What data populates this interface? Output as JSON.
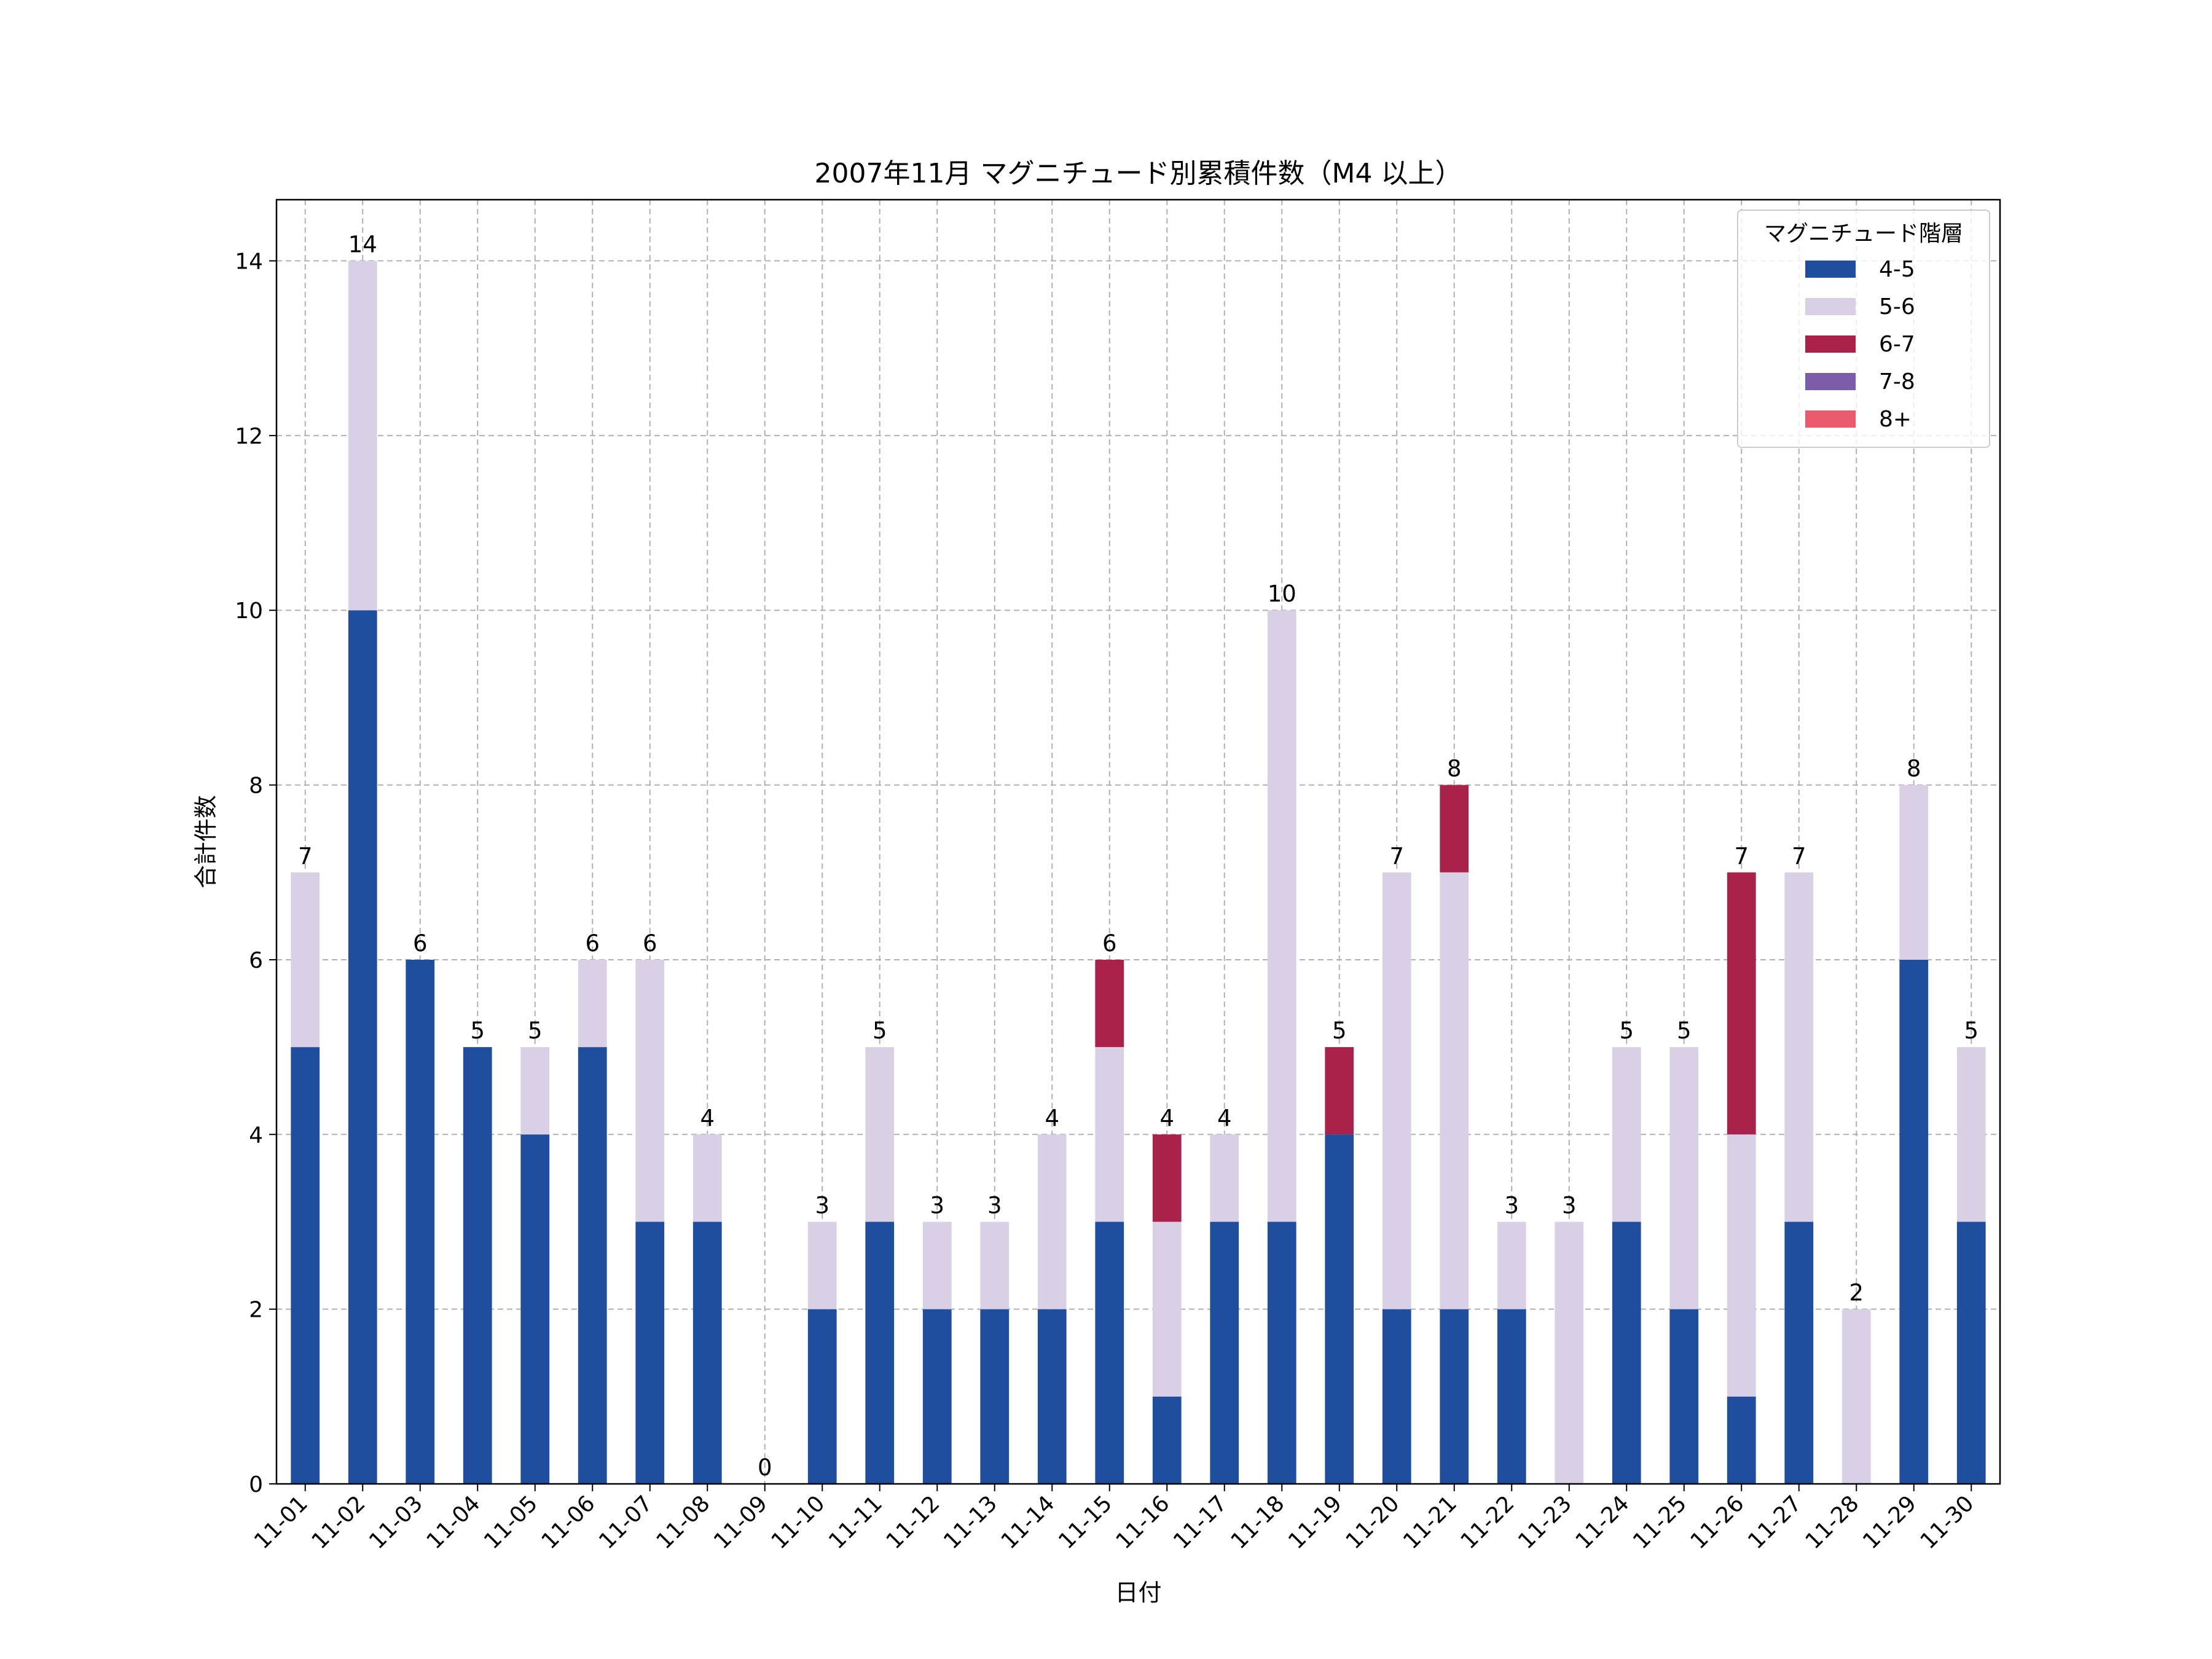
{
  "chart_data": {
    "type": "bar",
    "stacked": true,
    "title": "2007年11月 マグニチュード別累積件数（M4 以上）",
    "xlabel": "日付",
    "ylabel": "合計件数",
    "ylim": [
      0,
      14.7
    ],
    "yticks": [
      0,
      2,
      4,
      6,
      8,
      10,
      12,
      14
    ],
    "grid": true,
    "legend": {
      "title": "マグニチュード階層",
      "placement": "top-right"
    },
    "categories": [
      "11-01",
      "11-02",
      "11-03",
      "11-04",
      "11-05",
      "11-06",
      "11-07",
      "11-08",
      "11-09",
      "11-10",
      "11-11",
      "11-12",
      "11-13",
      "11-14",
      "11-15",
      "11-16",
      "11-17",
      "11-18",
      "11-19",
      "11-20",
      "11-21",
      "11-22",
      "11-23",
      "11-24",
      "11-25",
      "11-26",
      "11-27",
      "11-28",
      "11-29",
      "11-30"
    ],
    "series": [
      {
        "name": "4-5",
        "color": "#1f4e9e",
        "values": [
          5,
          10,
          6,
          5,
          4,
          5,
          3,
          3,
          0,
          2,
          3,
          2,
          2,
          2,
          3,
          1,
          3,
          3,
          4,
          2,
          2,
          2,
          0,
          3,
          2,
          1,
          3,
          0,
          6,
          3
        ]
      },
      {
        "name": "5-6",
        "color": "#dad0e6",
        "values": [
          2,
          4,
          0,
          0,
          1,
          1,
          3,
          1,
          0,
          1,
          2,
          1,
          1,
          2,
          2,
          2,
          1,
          7,
          0,
          5,
          5,
          1,
          3,
          2,
          3,
          3,
          4,
          2,
          2,
          2
        ]
      },
      {
        "name": "6-7",
        "color": "#a8224a",
        "values": [
          0,
          0,
          0,
          0,
          0,
          0,
          0,
          0,
          0,
          0,
          0,
          0,
          0,
          0,
          1,
          1,
          0,
          0,
          1,
          0,
          1,
          0,
          0,
          0,
          0,
          3,
          0,
          0,
          0,
          0
        ]
      },
      {
        "name": "7-8",
        "color": "#7a5ca8",
        "values": [
          0,
          0,
          0,
          0,
          0,
          0,
          0,
          0,
          0,
          0,
          0,
          0,
          0,
          0,
          0,
          0,
          0,
          0,
          0,
          0,
          0,
          0,
          0,
          0,
          0,
          0,
          0,
          0,
          0,
          0
        ]
      },
      {
        "name": "8+",
        "color": "#e85a6c",
        "values": [
          0,
          0,
          0,
          0,
          0,
          0,
          0,
          0,
          0,
          0,
          0,
          0,
          0,
          0,
          0,
          0,
          0,
          0,
          0,
          0,
          0,
          0,
          0,
          0,
          0,
          0,
          0,
          0,
          0,
          0
        ]
      }
    ],
    "totals": [
      7,
      14,
      6,
      5,
      5,
      6,
      6,
      4,
      0,
      3,
      5,
      3,
      3,
      4,
      6,
      4,
      4,
      10,
      5,
      7,
      8,
      3,
      3,
      5,
      5,
      7,
      7,
      2,
      8,
      5
    ]
  }
}
